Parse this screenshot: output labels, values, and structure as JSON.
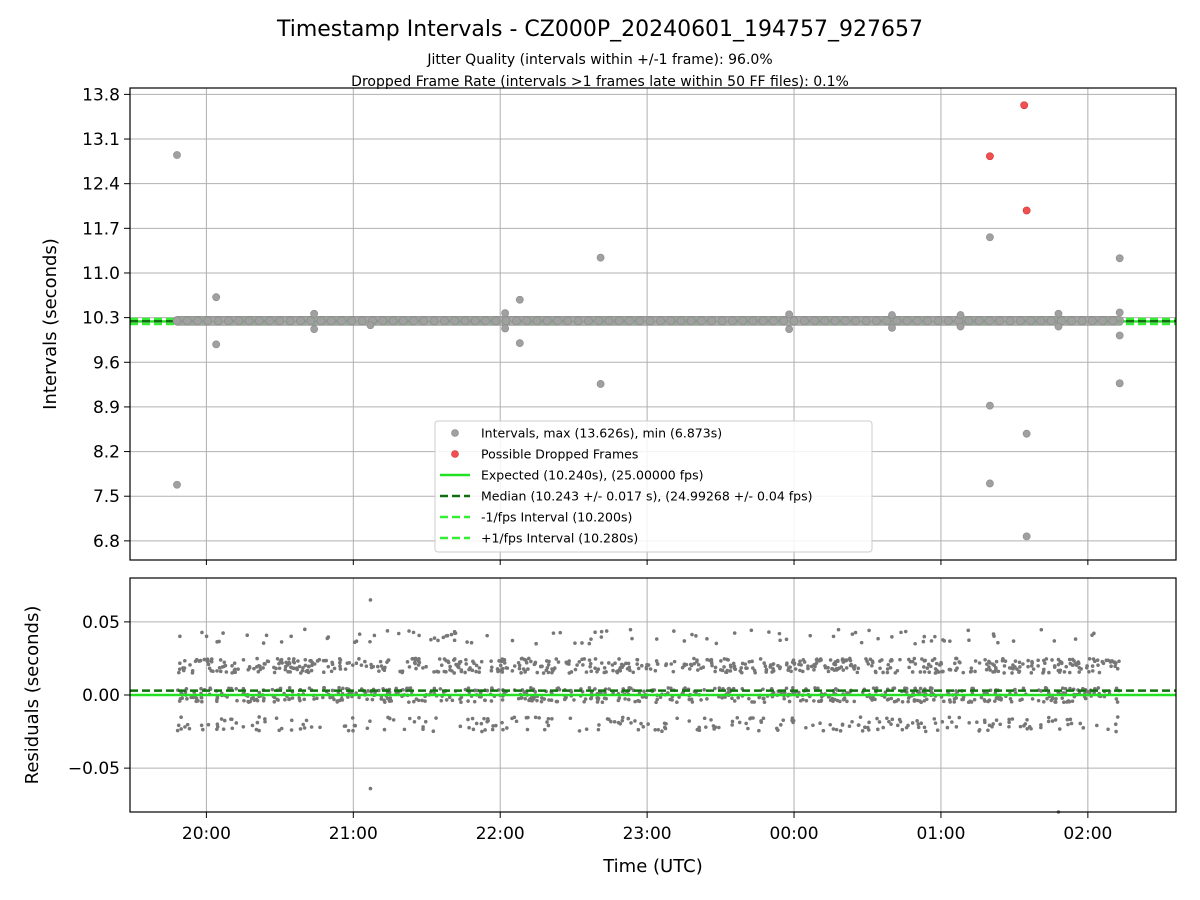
{
  "title": "Timestamp Intervals - CZ000P_20240601_194757_927657",
  "subtitle1": "Jitter Quality (intervals within +/-1 frame): 96.0%",
  "subtitle2": "Dropped Frame Rate (intervals >1 frames late within 50 FF files): 0.1%",
  "colors": {
    "intervals": "#a0a0a0",
    "dropped": "#f05050",
    "expected": "#22e022",
    "median": "#107010",
    "fps_band": "#33ee33",
    "residual_points": "#777777",
    "grid": "#b0b0b0"
  },
  "chart_data": [
    {
      "type": "scatter",
      "ylabel": "Intervals (seconds)",
      "ylim": [
        6.5,
        13.9
      ],
      "xlim_hours": [
        19.48,
        26.6
      ],
      "y_ticks": [
        "6.8",
        "7.5",
        "8.2",
        "8.9",
        "9.6",
        "10.3",
        "11.0",
        "11.7",
        "12.4",
        "13.1",
        "13.8"
      ],
      "y_tick_values": [
        6.8,
        7.5,
        8.2,
        8.9,
        9.6,
        10.3,
        11.0,
        11.7,
        12.4,
        13.1,
        13.8
      ],
      "x_grid_hours": [
        20,
        21,
        22,
        23,
        24,
        25,
        26
      ],
      "grid": true,
      "legend_position": "lower-center",
      "legend": [
        "Intervals, max (13.626s), min (6.873s)",
        "Possible Dropped Frames",
        "Expected (10.240s), (25.00000 fps)",
        "Median (10.243 +/- 0.017 s), (24.99268 +/- 0.04 fps)",
        "-1/fps Interval (10.200s)",
        "+1/fps Interval (10.280s)"
      ],
      "expected": 10.24,
      "median": 10.243,
      "minus_fps": 10.2,
      "plus_fps": 10.28,
      "interval_band": {
        "x_start": "19:48",
        "x_end": "02:13",
        "y": 10.25
      },
      "outliers": [
        {
          "x": "19:48",
          "y": 12.85
        },
        {
          "x": "19:48",
          "y": 7.68
        },
        {
          "x": "20:04",
          "y": 10.62
        },
        {
          "x": "20:04",
          "y": 9.88
        },
        {
          "x": "20:44",
          "y": 10.36
        },
        {
          "x": "20:44",
          "y": 10.12
        },
        {
          "x": "21:07",
          "y": 10.18
        },
        {
          "x": "22:02",
          "y": 10.37
        },
        {
          "x": "22:02",
          "y": 10.13
        },
        {
          "x": "22:08",
          "y": 10.58
        },
        {
          "x": "22:08",
          "y": 9.9
        },
        {
          "x": "22:41",
          "y": 11.24
        },
        {
          "x": "22:41",
          "y": 9.26
        },
        {
          "x": "23:58",
          "y": 10.35
        },
        {
          "x": "23:58",
          "y": 10.12
        },
        {
          "x": "00:40",
          "y": 10.34
        },
        {
          "x": "00:40",
          "y": 10.14
        },
        {
          "x": "01:08",
          "y": 10.34
        },
        {
          "x": "01:08",
          "y": 10.16
        },
        {
          "x": "01:20",
          "y": 11.56
        },
        {
          "x": "01:20",
          "y": 8.92
        },
        {
          "x": "01:20",
          "y": 7.7
        },
        {
          "x": "01:35",
          "y": 8.48
        },
        {
          "x": "01:35",
          "y": 6.87
        },
        {
          "x": "01:48",
          "y": 10.36
        },
        {
          "x": "01:48",
          "y": 10.16
        },
        {
          "x": "02:13",
          "y": 11.23
        },
        {
          "x": "02:13",
          "y": 10.38
        },
        {
          "x": "02:13",
          "y": 10.02
        },
        {
          "x": "02:13",
          "y": 9.27
        }
      ],
      "dropped": [
        {
          "x": "01:20",
          "y": 12.83
        },
        {
          "x": "01:34",
          "y": 13.63
        },
        {
          "x": "01:35",
          "y": 11.98
        }
      ]
    },
    {
      "type": "scatter",
      "xlabel": "Time (UTC)",
      "ylabel": "Residuals (seconds)",
      "ylim": [
        -0.08,
        0.08
      ],
      "y_ticks": [
        "−0.05",
        "0.00",
        "0.05"
      ],
      "y_tick_values": [
        -0.05,
        0.0,
        0.05
      ],
      "x_ticks": [
        "20:00",
        "21:00",
        "22:00",
        "23:00",
        "00:00",
        "01:00",
        "02:00"
      ],
      "x_tick_hours": [
        20,
        21,
        22,
        23,
        24,
        25,
        26
      ],
      "grid": true,
      "expected_residual": 0.0,
      "median_residual": 0.003,
      "residual_levels": [
        -0.02,
        0.0,
        0.02,
        0.04
      ],
      "residual_time_range": [
        "19:48",
        "02:13"
      ],
      "residual_extremes": [
        {
          "x": "21:07",
          "y": 0.065
        },
        {
          "x": "21:07",
          "y": -0.064
        },
        {
          "x": "01:48",
          "y": -0.08
        }
      ]
    }
  ]
}
